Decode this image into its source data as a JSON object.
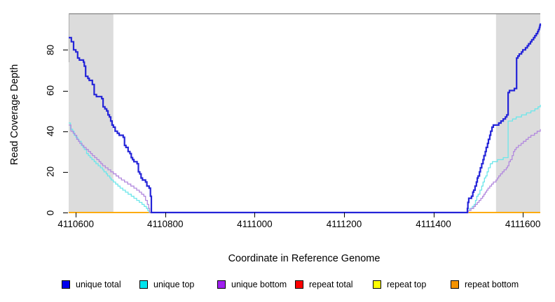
{
  "chart_data": {
    "type": "line",
    "step": true,
    "title": "",
    "xlabel": "Coordinate in Reference Genome",
    "ylabel": "Read Coverage Depth",
    "xlim": [
      4110584,
      4111639
    ],
    "ylim": [
      0,
      98
    ],
    "x_ticks": [
      4110600,
      4110800,
      4111000,
      4111200,
      4111400,
      4111600
    ],
    "y_ticks": [
      0,
      20,
      40,
      60,
      80
    ],
    "grid": false,
    "legend_position": "bottom-horizontal",
    "shade_color": "#DCDCDC",
    "frame_top_color": "#8F8F8F",
    "shaded_regions": [
      {
        "x0": 4110584,
        "x1": 4110684
      },
      {
        "x0": 4111540,
        "x1": 4111639
      }
    ],
    "series": [
      {
        "name": "unique total",
        "legend_color": "#0000EE",
        "line_color": "#2424D8",
        "width": 2.2,
        "z": 5,
        "points": [
          [
            4110584,
            86
          ],
          [
            4110590,
            84
          ],
          [
            4110595,
            80
          ],
          [
            4110600,
            79
          ],
          [
            4110604,
            76
          ],
          [
            4110608,
            75
          ],
          [
            4110617,
            74
          ],
          [
            4110619,
            72
          ],
          [
            4110622,
            67
          ],
          [
            4110627,
            66
          ],
          [
            4110630,
            65
          ],
          [
            4110637,
            63
          ],
          [
            4110641,
            58
          ],
          [
            4110646,
            57
          ],
          [
            4110658,
            56
          ],
          [
            4110661,
            52
          ],
          [
            4110665,
            51
          ],
          [
            4110669,
            50
          ],
          [
            4110672,
            48
          ],
          [
            4110675,
            47
          ],
          [
            4110678,
            45
          ],
          [
            4110681,
            43
          ],
          [
            4110684,
            42
          ],
          [
            4110688,
            40
          ],
          [
            4110693,
            39
          ],
          [
            4110697,
            38
          ],
          [
            4110706,
            37
          ],
          [
            4110709,
            33
          ],
          [
            4110712,
            32
          ],
          [
            4110717,
            30
          ],
          [
            4110721,
            29
          ],
          [
            4110724,
            27
          ],
          [
            4110727,
            26
          ],
          [
            4110730,
            25
          ],
          [
            4110737,
            24
          ],
          [
            4110740,
            20
          ],
          [
            4110743,
            19
          ],
          [
            4110746,
            17
          ],
          [
            4110749,
            16
          ],
          [
            4110756,
            15
          ],
          [
            4110759,
            13
          ],
          [
            4110764,
            12
          ],
          [
            4110767,
            8
          ],
          [
            4110769,
            0
          ],
          [
            4111476,
            2
          ],
          [
            4111477,
            5
          ],
          [
            4111479,
            7
          ],
          [
            4111485,
            8
          ],
          [
            4111488,
            10
          ],
          [
            4111490,
            11
          ],
          [
            4111493,
            13
          ],
          [
            4111496,
            15
          ],
          [
            4111498,
            17
          ],
          [
            4111500,
            18
          ],
          [
            4111503,
            20
          ],
          [
            4111505,
            22
          ],
          [
            4111508,
            24
          ],
          [
            4111511,
            26
          ],
          [
            4111513,
            28
          ],
          [
            4111516,
            30
          ],
          [
            4111518,
            32
          ],
          [
            4111521,
            34
          ],
          [
            4111523,
            36
          ],
          [
            4111526,
            38
          ],
          [
            4111528,
            40
          ],
          [
            4111531,
            42
          ],
          [
            4111534,
            43
          ],
          [
            4111546,
            44
          ],
          [
            4111551,
            45
          ],
          [
            4111556,
            46
          ],
          [
            4111561,
            47
          ],
          [
            4111564,
            48
          ],
          [
            4111567,
            59
          ],
          [
            4111570,
            60
          ],
          [
            4111581,
            61
          ],
          [
            4111586,
            76
          ],
          [
            4111589,
            77
          ],
          [
            4111592,
            78
          ],
          [
            4111597,
            79
          ],
          [
            4111600,
            80
          ],
          [
            4111606,
            81
          ],
          [
            4111610,
            82
          ],
          [
            4111613,
            83
          ],
          [
            4111617,
            84
          ],
          [
            4111620,
            85
          ],
          [
            4111624,
            86
          ],
          [
            4111627,
            87
          ],
          [
            4111630,
            88
          ],
          [
            4111633,
            89
          ],
          [
            4111635,
            90
          ],
          [
            4111637,
            91
          ],
          [
            4111638,
            92
          ],
          [
            4111639,
            93
          ]
        ]
      },
      {
        "name": "unique top",
        "legend_color": "#00E5EE",
        "line_color": "#6CE6EA",
        "width": 1.3,
        "z": 3,
        "points": [
          [
            4110584,
            44
          ],
          [
            4110588,
            41
          ],
          [
            4110593,
            40
          ],
          [
            4110596,
            38
          ],
          [
            4110600,
            37
          ],
          [
            4110604,
            36
          ],
          [
            4110607,
            35
          ],
          [
            4110612,
            33
          ],
          [
            4110616,
            32
          ],
          [
            4110619,
            31
          ],
          [
            4110624,
            29
          ],
          [
            4110628,
            28
          ],
          [
            4110632,
            27
          ],
          [
            4110636,
            26
          ],
          [
            4110641,
            25
          ],
          [
            4110645,
            24
          ],
          [
            4110650,
            23
          ],
          [
            4110655,
            22
          ],
          [
            4110660,
            21
          ],
          [
            4110663,
            20
          ],
          [
            4110668,
            19
          ],
          [
            4110671,
            18
          ],
          [
            4110676,
            17
          ],
          [
            4110679,
            16
          ],
          [
            4110684,
            15
          ],
          [
            4110689,
            14
          ],
          [
            4110694,
            13
          ],
          [
            4110699,
            12
          ],
          [
            4110705,
            11
          ],
          [
            4110711,
            10
          ],
          [
            4110717,
            9
          ],
          [
            4110724,
            8
          ],
          [
            4110730,
            7
          ],
          [
            4110736,
            6
          ],
          [
            4110742,
            5
          ],
          [
            4110748,
            4
          ],
          [
            4110753,
            3
          ],
          [
            4110758,
            2
          ],
          [
            4110761,
            1
          ],
          [
            4110764,
            0
          ],
          [
            4111477,
            1
          ],
          [
            4111481,
            2
          ],
          [
            4111487,
            3
          ],
          [
            4111491,
            4
          ],
          [
            4111494,
            6
          ],
          [
            4111497,
            8
          ],
          [
            4111500,
            9
          ],
          [
            4111504,
            11
          ],
          [
            4111508,
            13
          ],
          [
            4111511,
            15
          ],
          [
            4111514,
            17
          ],
          [
            4111517,
            18
          ],
          [
            4111520,
            20
          ],
          [
            4111523,
            22
          ],
          [
            4111527,
            24
          ],
          [
            4111532,
            25
          ],
          [
            4111543,
            26
          ],
          [
            4111556,
            27
          ],
          [
            4111567,
            45
          ],
          [
            4111577,
            46
          ],
          [
            4111585,
            47
          ],
          [
            4111597,
            48
          ],
          [
            4111608,
            49
          ],
          [
            4111618,
            50
          ],
          [
            4111627,
            51
          ],
          [
            4111634,
            52
          ],
          [
            4111639,
            53
          ]
        ]
      },
      {
        "name": "unique bottom",
        "legend_color": "#A020F0",
        "line_color": "#B289DE",
        "width": 1.3,
        "z": 4,
        "points": [
          [
            4110584,
            43
          ],
          [
            4110589,
            40
          ],
          [
            4110594,
            39
          ],
          [
            4110598,
            38
          ],
          [
            4110602,
            36
          ],
          [
            4110606,
            35
          ],
          [
            4110609,
            34
          ],
          [
            4110614,
            33
          ],
          [
            4110618,
            32
          ],
          [
            4110623,
            31
          ],
          [
            4110628,
            30
          ],
          [
            4110633,
            29
          ],
          [
            4110637,
            28
          ],
          [
            4110642,
            27
          ],
          [
            4110647,
            26
          ],
          [
            4110652,
            25
          ],
          [
            4110656,
            24
          ],
          [
            4110660,
            23
          ],
          [
            4110666,
            22
          ],
          [
            4110672,
            21
          ],
          [
            4110678,
            20
          ],
          [
            4110684,
            19
          ],
          [
            4110690,
            18
          ],
          [
            4110696,
            17
          ],
          [
            4110702,
            16
          ],
          [
            4110709,
            15
          ],
          [
            4110716,
            14
          ],
          [
            4110723,
            13
          ],
          [
            4110730,
            12
          ],
          [
            4110736,
            11
          ],
          [
            4110742,
            10
          ],
          [
            4110747,
            9
          ],
          [
            4110752,
            8
          ],
          [
            4110756,
            6
          ],
          [
            4110760,
            4
          ],
          [
            4110763,
            2
          ],
          [
            4110765,
            0
          ],
          [
            4111478,
            1
          ],
          [
            4111484,
            2
          ],
          [
            4111490,
            3
          ],
          [
            4111494,
            4
          ],
          [
            4111498,
            5
          ],
          [
            4111502,
            6
          ],
          [
            4111506,
            7
          ],
          [
            4111510,
            8
          ],
          [
            4111513,
            9
          ],
          [
            4111516,
            10
          ],
          [
            4111519,
            11
          ],
          [
            4111522,
            12
          ],
          [
            4111526,
            13
          ],
          [
            4111530,
            14
          ],
          [
            4111534,
            15
          ],
          [
            4111540,
            16
          ],
          [
            4111543,
            17
          ],
          [
            4111546,
            18
          ],
          [
            4111550,
            19
          ],
          [
            4111554,
            20
          ],
          [
            4111558,
            21
          ],
          [
            4111563,
            22
          ],
          [
            4111566,
            23
          ],
          [
            4111569,
            25
          ],
          [
            4111572,
            26
          ],
          [
            4111576,
            28
          ],
          [
            4111579,
            30
          ],
          [
            4111582,
            31
          ],
          [
            4111585,
            32
          ],
          [
            4111590,
            33
          ],
          [
            4111596,
            34
          ],
          [
            4111601,
            35
          ],
          [
            4111607,
            36
          ],
          [
            4111612,
            37
          ],
          [
            4111618,
            38
          ],
          [
            4111626,
            39
          ],
          [
            4111632,
            40
          ],
          [
            4111639,
            41
          ]
        ]
      },
      {
        "name": "repeat total",
        "legend_color": "#FF0000",
        "line_color": "#DD0000",
        "width": 1.5,
        "z": 0,
        "points": [
          [
            4110584,
            0
          ],
          [
            4111639,
            0
          ]
        ]
      },
      {
        "name": "repeat top",
        "legend_color": "#FFFF00",
        "line_color": "#FFFF00",
        "width": 1.5,
        "z": 1,
        "points": [
          [
            4110584,
            0
          ],
          [
            4111639,
            0
          ]
        ]
      },
      {
        "name": "repeat bottom",
        "legend_color": "#F59300",
        "line_color": "#FFA500",
        "width": 1.6,
        "z": 2,
        "points": [
          [
            4110584,
            0
          ],
          [
            4111639,
            0
          ]
        ]
      }
    ]
  }
}
